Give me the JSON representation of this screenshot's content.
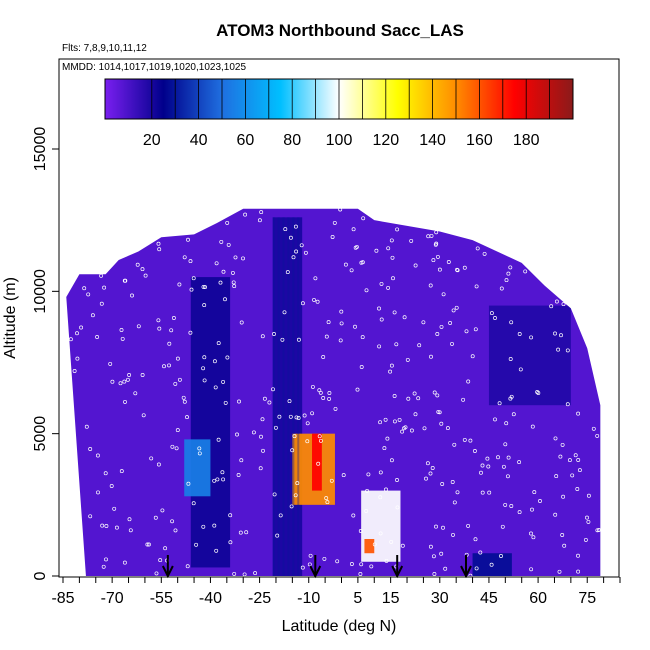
{
  "chart_data": {
    "type": "heatmap",
    "title": "ATOM3 Northbound Sacc_LAS",
    "subtitle_flights": "Flts: 7,8,9,10,11,12",
    "subtitle_dates": "MMDD: 1014,1017,1019,1020,1023,1025",
    "xlabel": "Latitude (deg N)",
    "ylabel": "Altitude (m)",
    "xlim": [
      -85,
      85
    ],
    "ylim": [
      0,
      18000
    ],
    "x_tick_labels": [
      "-85",
      "-70",
      "-55",
      "-40",
      "-25",
      "-10",
      "5",
      "15",
      "30",
      "45",
      "60",
      "75"
    ],
    "y_tick_labels": [
      "0",
      "5000",
      "10000",
      "15000"
    ],
    "colorbar": {
      "range": [
        0,
        200
      ],
      "tick_labels": [
        "20",
        "40",
        "60",
        "80",
        "100",
        "120",
        "140",
        "160",
        "180"
      ],
      "colors": [
        "#7a1ff0",
        "#00008b",
        "#1f6fe0",
        "#00bfff",
        "#ffffff",
        "#ffff00",
        "#ff8c00",
        "#ff0000",
        "#8b1a1a"
      ]
    },
    "background_value": 8,
    "coverage_lat_altitude_top": [
      {
        "lat": -84,
        "alt": 9800
      },
      {
        "lat": -80,
        "alt": 10600
      },
      {
        "lat": -72,
        "alt": 10600
      },
      {
        "lat": -68,
        "alt": 11100
      },
      {
        "lat": -62,
        "alt": 11400
      },
      {
        "lat": -55,
        "alt": 11900
      },
      {
        "lat": -45,
        "alt": 12000
      },
      {
        "lat": -38,
        "alt": 12400
      },
      {
        "lat": -30,
        "alt": 12900
      },
      {
        "lat": 5,
        "alt": 12900
      },
      {
        "lat": 10,
        "alt": 12500
      },
      {
        "lat": 30,
        "alt": 12100
      },
      {
        "lat": 40,
        "alt": 11800
      },
      {
        "lat": 55,
        "alt": 11000
      },
      {
        "lat": 62,
        "alt": 10200
      },
      {
        "lat": 70,
        "alt": 9400
      },
      {
        "lat": 75,
        "alt": 8000
      },
      {
        "lat": 79,
        "alt": 6000
      },
      {
        "lat": 79,
        "alt": 0
      }
    ],
    "coverage_lat_bottom": [
      -78,
      79
    ],
    "features": [
      {
        "name": "southern-dense-column",
        "lat_range": [
          -46,
          -34
        ],
        "alt_range": [
          300,
          10500
        ],
        "value": 22
      },
      {
        "name": "tropical-dense-column",
        "lat_range": [
          -21,
          -12
        ],
        "alt_range": [
          0,
          12600
        ],
        "value": 20
      },
      {
        "name": "convective-plume-west",
        "lat_range": [
          -15,
          -2
        ],
        "alt_range": [
          2500,
          5000
        ],
        "value": 150
      },
      {
        "name": "convective-plume-core",
        "lat_range": [
          -9,
          -6
        ],
        "alt_range": [
          3000,
          5000
        ],
        "value": 175
      },
      {
        "name": "convective-plume-east",
        "lat_range": [
          6,
          18
        ],
        "alt_range": [
          500,
          3000
        ],
        "value": 100
      },
      {
        "name": "convective-plume-east-core",
        "lat_range": [
          7,
          10
        ],
        "alt_range": [
          800,
          1300
        ],
        "value": 160
      },
      {
        "name": "southern-midlevel-patch",
        "lat_range": [
          -48,
          -40
        ],
        "alt_range": [
          2800,
          4800
        ],
        "value": 55
      },
      {
        "name": "northern-upper-patch",
        "lat_range": [
          45,
          70
        ],
        "alt_range": [
          6000,
          9500
        ],
        "value": 18
      },
      {
        "name": "northern-surface-patch",
        "lat_range": [
          40,
          52
        ],
        "alt_range": [
          0,
          800
        ],
        "value": 28
      }
    ],
    "arrow_latitudes": [
      -53,
      -8,
      17,
      38
    ]
  }
}
